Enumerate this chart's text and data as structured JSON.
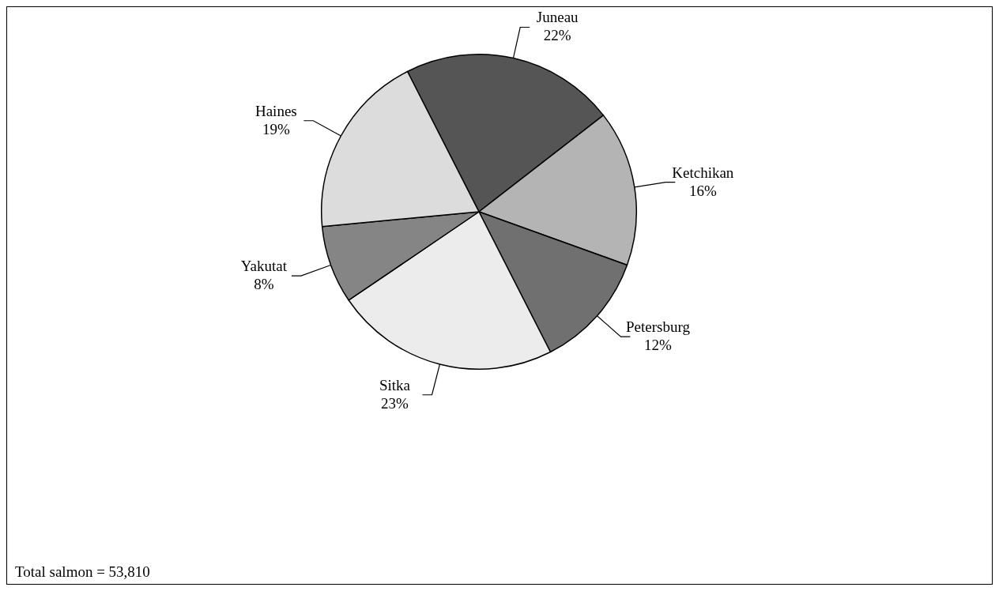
{
  "chart_data": {
    "type": "pie",
    "categories": [
      "Juneau",
      "Ketchikan",
      "Petersburg",
      "Sitka",
      "Yakutat",
      "Haines"
    ],
    "values": [
      22,
      16,
      12,
      23,
      8,
      19
    ],
    "value_labels": [
      "22%",
      "16%",
      "12%",
      "23%",
      "8%",
      "19%"
    ],
    "colors": [
      "#555555",
      "#b4b4b4",
      "#707070",
      "#ececec",
      "#858585",
      "#dcdcdc"
    ],
    "legend": false,
    "annotations": [
      "Total salmon = 53,810"
    ]
  }
}
